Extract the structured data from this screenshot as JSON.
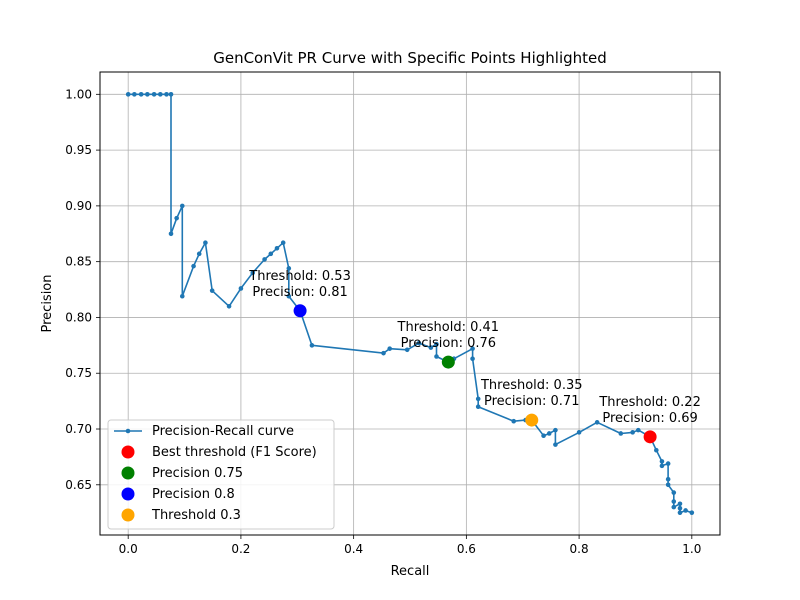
{
  "chart_data": {
    "type": "line",
    "title": "GenConVit PR Curve with Specific Points Highlighted",
    "xlabel": "Recall",
    "ylabel": "Precision",
    "xlim": [
      -0.05,
      1.05
    ],
    "ylim": [
      0.605,
      1.02
    ],
    "grid": true,
    "legend_position": "lower-left",
    "x_ticks": [
      0.0,
      0.2,
      0.4,
      0.6,
      0.8,
      1.0
    ],
    "x_tick_labels": [
      "0.0",
      "0.2",
      "0.4",
      "0.6",
      "0.8",
      "1.0"
    ],
    "y_ticks": [
      0.65,
      0.7,
      0.75,
      0.8,
      0.85,
      0.9,
      0.95,
      1.0
    ],
    "y_tick_labels": [
      "0.65",
      "0.70",
      "0.75",
      "0.80",
      "0.85",
      "0.90",
      "0.95",
      "1.00"
    ],
    "series": [
      {
        "name": "Precision-Recall curve",
        "color": "#1f77b4",
        "points": [
          [
            0.0,
            1.0
          ],
          [
            0.011,
            1.0
          ],
          [
            0.023,
            1.0
          ],
          [
            0.034,
            1.0
          ],
          [
            0.046,
            1.0
          ],
          [
            0.057,
            1.0
          ],
          [
            0.068,
            1.0
          ],
          [
            0.076,
            1.0
          ],
          [
            0.076,
            0.875
          ],
          [
            0.086,
            0.889
          ],
          [
            0.096,
            0.9
          ],
          [
            0.096,
            0.819
          ],
          [
            0.116,
            0.846
          ],
          [
            0.126,
            0.857
          ],
          [
            0.137,
            0.867
          ],
          [
            0.149,
            0.824
          ],
          [
            0.179,
            0.81
          ],
          [
            0.2,
            0.826
          ],
          [
            0.221,
            0.84
          ],
          [
            0.242,
            0.852
          ],
          [
            0.253,
            0.857
          ],
          [
            0.264,
            0.862
          ],
          [
            0.275,
            0.867
          ],
          [
            0.285,
            0.844
          ],
          [
            0.285,
            0.819
          ],
          [
            0.305,
            0.806
          ],
          [
            0.326,
            0.775
          ],
          [
            0.453,
            0.768
          ],
          [
            0.464,
            0.772
          ],
          [
            0.495,
            0.771
          ],
          [
            0.516,
            0.777
          ],
          [
            0.537,
            0.773
          ],
          [
            0.547,
            0.776
          ],
          [
            0.547,
            0.765
          ],
          [
            0.568,
            0.76
          ],
          [
            0.578,
            0.763
          ],
          [
            0.611,
            0.772
          ],
          [
            0.611,
            0.763
          ],
          [
            0.621,
            0.727
          ],
          [
            0.621,
            0.72
          ],
          [
            0.684,
            0.707
          ],
          [
            0.705,
            0.708
          ],
          [
            0.716,
            0.708
          ],
          [
            0.737,
            0.694
          ],
          [
            0.747,
            0.696
          ],
          [
            0.758,
            0.699
          ],
          [
            0.758,
            0.686
          ],
          [
            0.8,
            0.697
          ],
          [
            0.832,
            0.706
          ],
          [
            0.874,
            0.696
          ],
          [
            0.895,
            0.697
          ],
          [
            0.905,
            0.699
          ],
          [
            0.926,
            0.693
          ],
          [
            0.937,
            0.681
          ],
          [
            0.947,
            0.671
          ],
          [
            0.947,
            0.667
          ],
          [
            0.958,
            0.669
          ],
          [
            0.958,
            0.655
          ],
          [
            0.958,
            0.65
          ],
          [
            0.968,
            0.643
          ],
          [
            0.968,
            0.635
          ],
          [
            0.968,
            0.63
          ],
          [
            0.979,
            0.633
          ],
          [
            0.979,
            0.629
          ],
          [
            0.979,
            0.625
          ],
          [
            0.989,
            0.627
          ],
          [
            1.0,
            0.625
          ]
        ]
      }
    ],
    "highlighted_points": [
      {
        "name": "Best threshold (F1 Score)",
        "color": "#ff0000",
        "x": 0.926,
        "y": 0.693,
        "annotation_line1": "Threshold: 0.22",
        "annotation_line2": "Precision: 0.69"
      },
      {
        "name": "Precision 0.75",
        "color": "#008000",
        "x": 0.568,
        "y": 0.76,
        "annotation_line1": "Threshold: 0.41",
        "annotation_line2": "Precision: 0.76"
      },
      {
        "name": "Precision 0.8",
        "color": "#0000ff",
        "x": 0.305,
        "y": 0.806,
        "annotation_line1": "Threshold: 0.53",
        "annotation_line2": "Precision: 0.81"
      },
      {
        "name": "Threshold 0.3",
        "color": "#ffa500",
        "x": 0.716,
        "y": 0.708,
        "annotation_line1": "Threshold: 0.35",
        "annotation_line2": "Precision: 0.71"
      }
    ]
  }
}
